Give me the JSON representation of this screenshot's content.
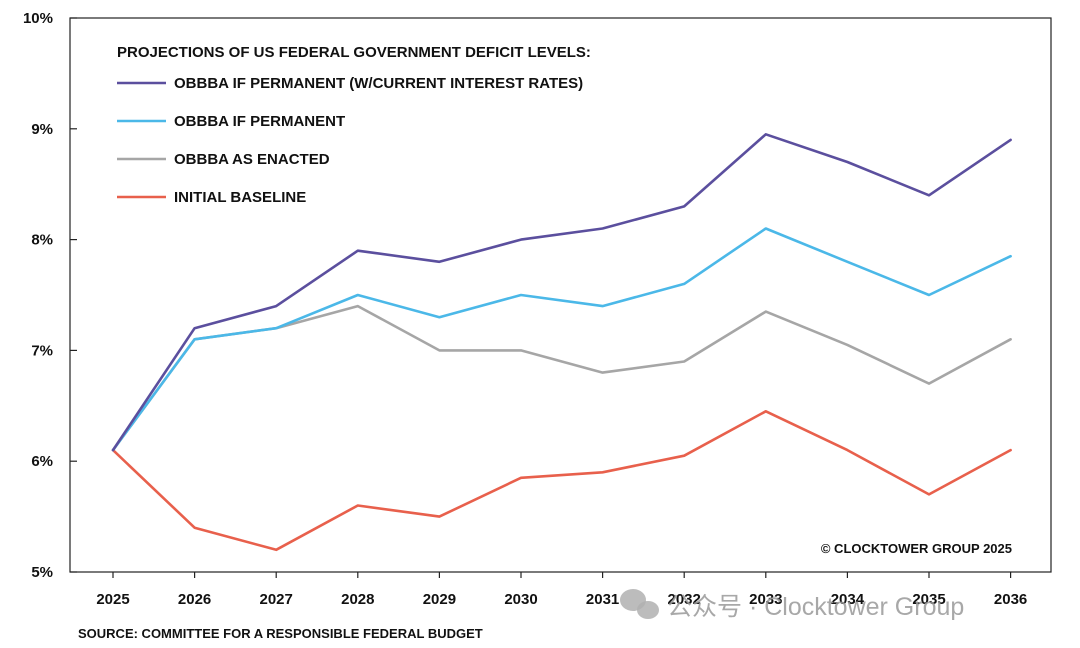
{
  "chart_data": {
    "type": "line",
    "title": "PROJECTIONS OF US FEDERAL GOVERNMENT DEFICIT LEVELS:",
    "xlabel": "",
    "ylabel": "",
    "categories": [
      "2025",
      "2026",
      "2027",
      "2028",
      "2029",
      "2030",
      "2031",
      "2032",
      "2033",
      "2034",
      "2035",
      "2036"
    ],
    "ylim": [
      5,
      10
    ],
    "yticks": [
      "5%",
      "6%",
      "7%",
      "8%",
      "9%",
      "10%"
    ],
    "grid": false,
    "legend_position": "top-left",
    "series": [
      {
        "name": "OBBBA IF PERMANENT (W/CURRENT INTEREST RATES)",
        "color": "#5b4f9e",
        "values": [
          6.1,
          7.2,
          7.4,
          7.9,
          7.8,
          8.0,
          8.1,
          8.3,
          8.95,
          8.7,
          8.4,
          8.9
        ]
      },
      {
        "name": "OBBBA IF PERMANENT",
        "color": "#4bb8e8",
        "values": [
          6.1,
          7.1,
          7.2,
          7.5,
          7.3,
          7.5,
          7.4,
          7.6,
          8.1,
          7.8,
          7.5,
          7.85
        ]
      },
      {
        "name": "OBBBA AS ENACTED",
        "color": "#a6a6a6",
        "values": [
          6.1,
          7.1,
          7.2,
          7.4,
          7.0,
          7.0,
          6.8,
          6.9,
          7.35,
          7.05,
          6.7,
          7.1
        ]
      },
      {
        "name": "INITIAL BASELINE",
        "color": "#e8604c",
        "values": [
          6.1,
          5.4,
          5.2,
          5.6,
          5.5,
          5.85,
          5.9,
          6.05,
          6.45,
          6.1,
          5.7,
          6.1
        ]
      }
    ],
    "annotations": {
      "copyright": "© CLOCKTOWER GROUP 2025",
      "source": "SOURCE: COMMITTEE FOR A RESPONSIBLE FEDERAL BUDGET"
    }
  },
  "watermark": {
    "text": "公众号 · Clocktower Group",
    "icon": "wechat-icon"
  }
}
